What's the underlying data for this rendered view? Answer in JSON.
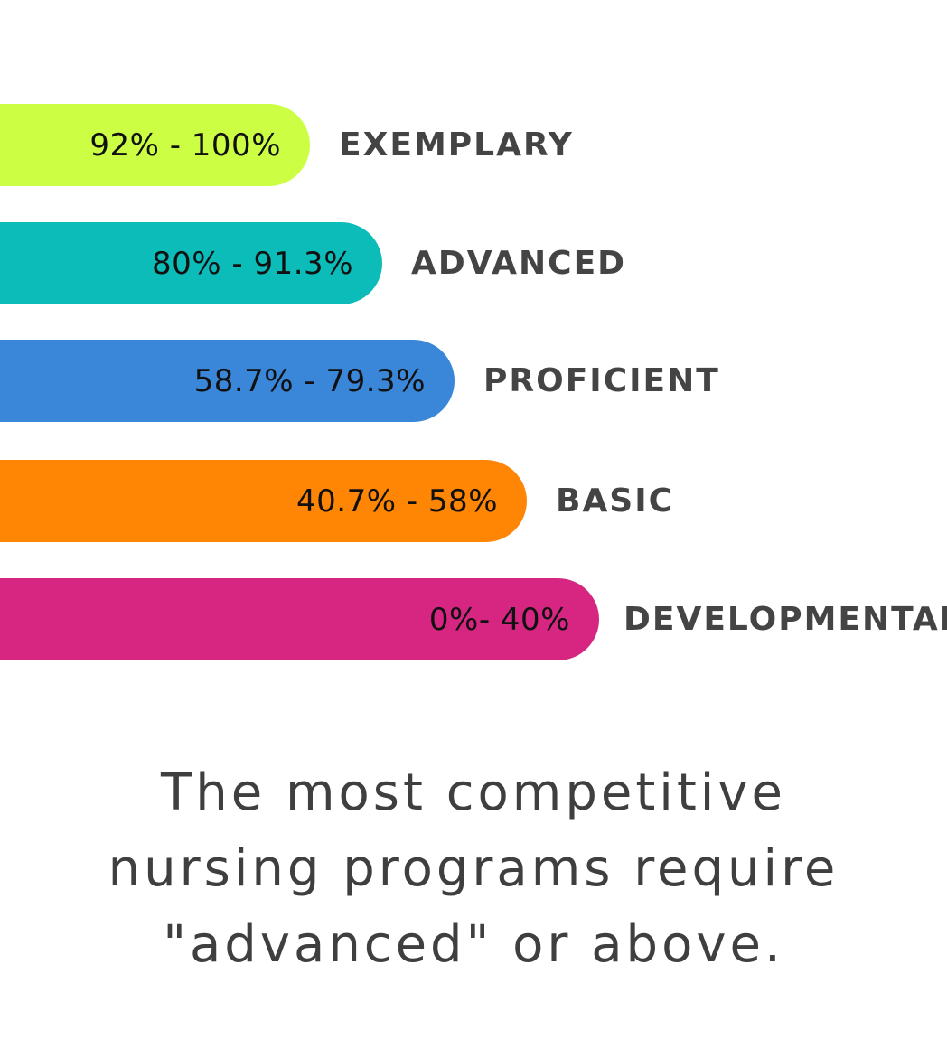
{
  "levels": [
    {
      "range": "92% - 100%",
      "name": "EXEMPLARY",
      "color": "#ccff44"
    },
    {
      "range": "80% - 91.3%",
      "name": "ADVANCED",
      "color": "#0cbcb8"
    },
    {
      "range": "58.7% - 79.3%",
      "name": "PROFICIENT",
      "color": "#3a86d8"
    },
    {
      "range": "40.7% - 58%",
      "name": "BASIC",
      "color": "#ff8505"
    },
    {
      "range": "0%- 40%",
      "name": "DEVELOPMENTAL",
      "color": "#d62682"
    }
  ],
  "caption": {
    "lines": [
      "The most competitive",
      "nursing programs require",
      "\"advanced\" or above."
    ]
  }
}
